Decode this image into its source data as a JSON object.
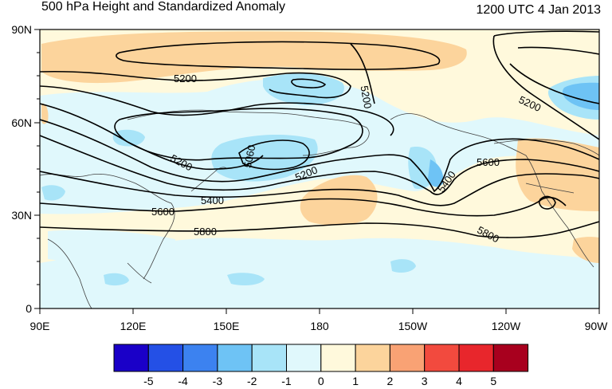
{
  "title": "500 hPa Height and Standardized Anomaly",
  "valid_time": "1200 UTC 4 Jan 2013",
  "map": {
    "y_ticks": [
      "90N",
      "60N",
      "30N",
      "0"
    ],
    "x_ticks": [
      "90E",
      "120E",
      "150E",
      "180",
      "150W",
      "120W",
      "90W"
    ],
    "contour_labels": [
      "5200",
      "5200",
      "5200",
      "5200",
      "5200",
      "5060",
      "5400",
      "5400",
      "5600",
      "5600",
      "5800",
      "5800"
    ]
  },
  "colorbar": {
    "labels": [
      "-5",
      "-4",
      "-3",
      "-2",
      "-1",
      "0",
      "1",
      "2",
      "3",
      "4",
      "5"
    ],
    "colors": [
      "#1a00c8",
      "#2450e6",
      "#3c82f0",
      "#6ec3f5",
      "#a8e4f8",
      "#e0f8fc",
      "#fff9dc",
      "#fcd49c",
      "#f9a274",
      "#f24a3e",
      "#e8262c",
      "#a8001e"
    ]
  }
}
